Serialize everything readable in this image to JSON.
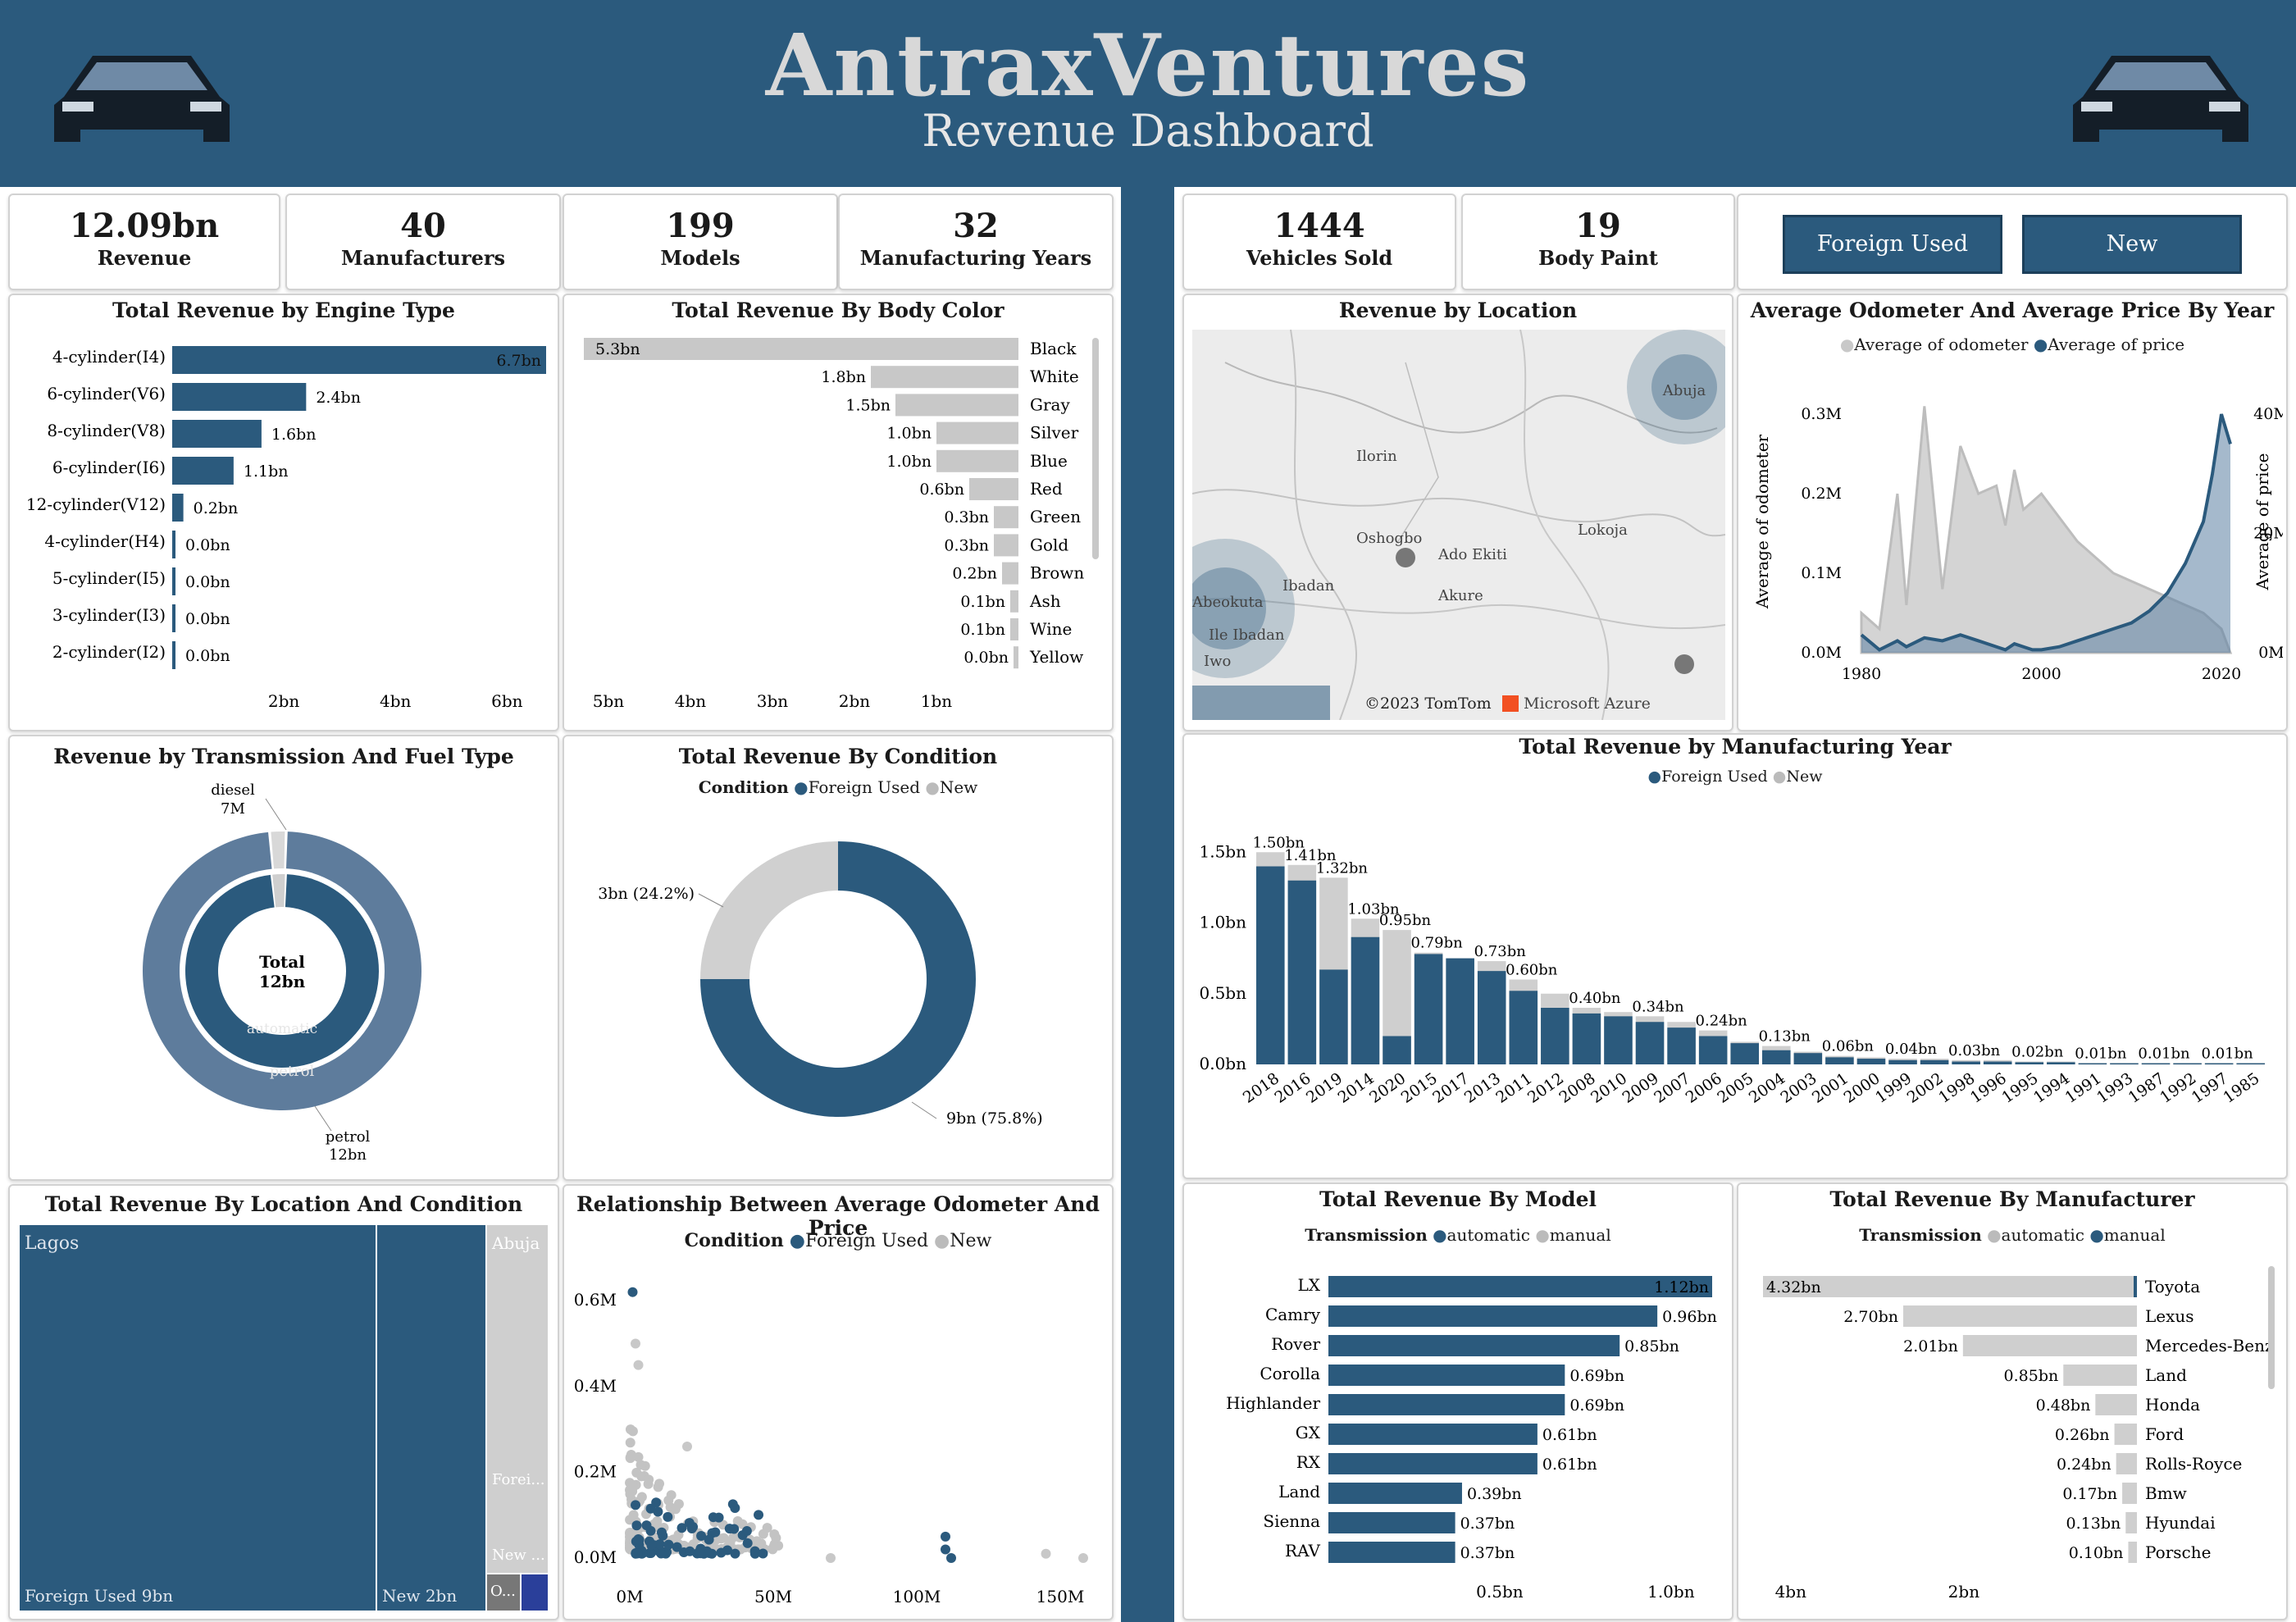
{
  "header": {
    "title": "AntraxVentures",
    "subtitle": "Revenue Dashboard"
  },
  "colors": {
    "primary": "#2b5a7d",
    "secondary": "#c8c8c8",
    "background": "#ffffff"
  },
  "kpis": [
    {
      "value": "12.09bn",
      "label": "Revenue"
    },
    {
      "value": "40",
      "label": "Manufacturers"
    },
    {
      "value": "199",
      "label": "Models"
    },
    {
      "value": "32",
      "label": "Manufacturing Years"
    },
    {
      "value": "1444",
      "label": "Vehicles Sold"
    },
    {
      "value": "19",
      "label": "Body Paint"
    }
  ],
  "slicer": {
    "buttons": [
      "Foreign Used",
      "New"
    ]
  },
  "chart_data": [
    {
      "id": "engine",
      "type": "bar",
      "title": "Total Revenue by Engine Type",
      "categories": [
        "4-cylinder(I4)",
        "6-cylinder(V6)",
        "8-cylinder(V8)",
        "6-cylinder(I6)",
        "12-cylinder(V12)",
        "4-cylinder(H4)",
        "5-cylinder(I5)",
        "3-cylinder(I3)",
        "2-cylinder(I2)"
      ],
      "values": [
        6.7,
        2.4,
        1.6,
        1.1,
        0.2,
        0.0,
        0.0,
        0.0,
        0.0
      ],
      "labels": [
        "6.7bn",
        "2.4bn",
        "1.6bn",
        "1.1bn",
        "0.2bn",
        "0.0bn",
        "0.0bn",
        "0.0bn",
        "0.0bn"
      ],
      "xticks": [
        "2bn",
        "4bn",
        "6bn"
      ],
      "xtick_values": [
        2,
        4,
        6
      ],
      "xlim": [
        0,
        6.7
      ]
    },
    {
      "id": "bodycolor",
      "type": "bar",
      "title": "Total Revenue By Body Color",
      "categories": [
        "Black",
        "White",
        "Gray",
        "Silver",
        "Blue",
        "Red",
        "Green",
        "Gold",
        "Brown",
        "Ash",
        "Wine",
        "Yellow"
      ],
      "values": [
        5.3,
        1.8,
        1.5,
        1.0,
        1.0,
        0.6,
        0.3,
        0.3,
        0.2,
        0.1,
        0.1,
        0.0
      ],
      "labels": [
        "5.3bn",
        "1.8bn",
        "1.5bn",
        "1.0bn",
        "1.0bn",
        "0.6bn",
        "0.3bn",
        "0.3bn",
        "0.2bn",
        "0.1bn",
        "0.1bn",
        "0.0bn"
      ],
      "xticks": [
        "5bn",
        "4bn",
        "3bn",
        "2bn",
        "1bn"
      ],
      "xtick_values": [
        5,
        4,
        3,
        2,
        1
      ],
      "xlim": [
        0,
        5.3
      ]
    },
    {
      "id": "transfuel",
      "type": "pie",
      "title": "Revenue by Transmission And Fuel Type",
      "center_label": [
        "Total",
        "12bn"
      ],
      "outer": [
        {
          "name": "petrol",
          "value": 12,
          "label": "petrol 12bn"
        },
        {
          "name": "diesel",
          "value": 0.007,
          "label": "diesel 7M"
        }
      ],
      "inner": [
        {
          "name": "automatic",
          "value": 11.3
        },
        {
          "name": "manual",
          "value": 0.7
        }
      ]
    },
    {
      "id": "condition",
      "type": "pie",
      "title": "Total Revenue By Condition",
      "legend_title": "Condition",
      "series": [
        {
          "name": "Foreign Used",
          "value": 9,
          "label": "9bn (75.8%)"
        },
        {
          "name": "New",
          "value": 3,
          "label": "3bn (24.2%)"
        }
      ]
    },
    {
      "id": "treemap",
      "type": "table",
      "title": "Total Revenue By Location And Condition",
      "groups": [
        {
          "name": "Lagos",
          "cells": [
            {
              "label": "Foreign Used 9bn",
              "value": 9
            },
            {
              "label": "New 2bn",
              "value": 2
            }
          ]
        },
        {
          "name": "Abuja",
          "cells": [
            {
              "label": "Forei...",
              "value": 0.3
            },
            {
              "label": "New ...",
              "value": 0.1
            }
          ]
        },
        {
          "name": "O...",
          "cells": []
        }
      ]
    },
    {
      "id": "scatter",
      "type": "scatter",
      "title": "Relationship Between Average Odometer And Price",
      "legend_title": "Condition",
      "series": [
        "Foreign Used",
        "New"
      ],
      "xticks": [
        "0M",
        "50M",
        "100M",
        "150M"
      ],
      "yticks": [
        "0.0M",
        "0.2M",
        "0.4M",
        "0.6M"
      ],
      "xlim": [
        0,
        160
      ],
      "ylim": [
        0,
        0.65
      ]
    },
    {
      "id": "location",
      "type": "map",
      "title": "Revenue by Location",
      "places": [
        "Abuja",
        "Ilorin",
        "Oshogbo",
        "Ado Ekiti",
        "Lokoja",
        "Ibadan",
        "Akure",
        "Abeokuta",
        "Ile Ibadan",
        "Iwo"
      ],
      "attribution": [
        "©2023 TomTom",
        "Microsoft Azure"
      ]
    },
    {
      "id": "odoprice",
      "type": "area",
      "title": "Average Odometer And Average Price By Year",
      "legend": [
        "Average of odometer",
        "Average of price"
      ],
      "ylabel": "Average of odometer",
      "y2label": "Average of price",
      "yticks": [
        "0.0M",
        "0.1M",
        "0.2M",
        "0.3M"
      ],
      "y2ticks": [
        "0M",
        "20M",
        "40M"
      ],
      "xticks": [
        "1980",
        "2000",
        "2020"
      ],
      "x": [
        1980,
        1982,
        1984,
        1985,
        1987,
        1989,
        1991,
        1993,
        1995,
        1996,
        1997,
        1998,
        1999,
        2000,
        2002,
        2004,
        2006,
        2008,
        2010,
        2012,
        2014,
        2016,
        2018,
        2019,
        2020,
        2021
      ],
      "odometer": [
        0.05,
        0.03,
        0.2,
        0.06,
        0.31,
        0.08,
        0.26,
        0.2,
        0.21,
        0.16,
        0.23,
        0.18,
        0.19,
        0.2,
        0.17,
        0.14,
        0.12,
        0.1,
        0.09,
        0.08,
        0.07,
        0.06,
        0.05,
        0.04,
        0.03,
        0.0
      ],
      "price": [
        3,
        0.5,
        2,
        1,
        2.5,
        2,
        3,
        2,
        1,
        0.5,
        1.5,
        1,
        0.5,
        0.5,
        1,
        2,
        3,
        4,
        5,
        7,
        10,
        15,
        22,
        30,
        40,
        35
      ]
    },
    {
      "id": "mfgyear",
      "type": "bar",
      "title": "Total Revenue by Manufacturing Year",
      "legend": [
        "Foreign Used",
        "New"
      ],
      "categories": [
        "2018",
        "2016",
        "2019",
        "2014",
        "2020",
        "2015",
        "2017",
        "2013",
        "2011",
        "2012",
        "2008",
        "2010",
        "2009",
        "2007",
        "2006",
        "2005",
        "2004",
        "2003",
        "2001",
        "2000",
        "1999",
        "2002",
        "1998",
        "1996",
        "1995",
        "1994",
        "1991",
        "1993",
        "1987",
        "1992",
        "1997",
        "1985"
      ],
      "totals": [
        1.5,
        1.41,
        1.32,
        1.03,
        0.95,
        0.79,
        0.75,
        0.73,
        0.6,
        0.5,
        0.4,
        0.37,
        0.34,
        0.3,
        0.24,
        0.16,
        0.13,
        0.09,
        0.06,
        0.05,
        0.04,
        0.04,
        0.03,
        0.03,
        0.02,
        0.02,
        0.01,
        0.01,
        0.01,
        0.01,
        0.01,
        0.01
      ],
      "foreign_used": [
        1.4,
        1.3,
        0.67,
        0.9,
        0.2,
        0.78,
        0.75,
        0.66,
        0.52,
        0.4,
        0.36,
        0.34,
        0.3,
        0.26,
        0.2,
        0.15,
        0.1,
        0.08,
        0.05,
        0.04,
        0.03,
        0.03,
        0.02,
        0.02,
        0.015,
        0.015,
        0.008,
        0.008,
        0.008,
        0.008,
        0.008,
        0.008
      ],
      "labels": [
        "1.50bn",
        "1.41bn",
        "1.32bn",
        "1.03bn",
        "0.95bn",
        "0.79bn",
        "",
        "0.73bn",
        "0.60bn",
        "",
        "0.40bn",
        "",
        "0.34bn",
        "",
        "0.24bn",
        "",
        "0.13bn",
        "",
        "0.06bn",
        "",
        "0.04bn",
        "",
        "0.03bn",
        "",
        "0.02bn",
        "",
        "0.01bn",
        "",
        "0.01bn",
        "",
        "0.01bn",
        ""
      ],
      "yticks": [
        "0.0bn",
        "0.5bn",
        "1.0bn",
        "1.5bn"
      ],
      "ylim": [
        0,
        1.6
      ]
    },
    {
      "id": "model",
      "type": "bar",
      "title": "Total Revenue By Model",
      "legend_title": "Transmission",
      "legend": [
        "automatic",
        "manual"
      ],
      "categories": [
        "LX",
        "Camry",
        "Rover",
        "Corolla",
        "Highlander",
        "GX",
        "RX",
        "Land",
        "Sienna",
        "RAV"
      ],
      "values": [
        1.12,
        0.96,
        0.85,
        0.69,
        0.69,
        0.61,
        0.61,
        0.39,
        0.37,
        0.37
      ],
      "labels": [
        "1.12bn",
        "0.96bn",
        "0.85bn",
        "0.69bn",
        "0.69bn",
        "0.61bn",
        "0.61bn",
        "0.39bn",
        "0.37bn",
        "0.37bn"
      ],
      "xticks": [
        "0.5bn",
        "1.0bn"
      ],
      "xtick_values": [
        0.5,
        1.0
      ],
      "xlim": [
        0,
        1.12
      ]
    },
    {
      "id": "manufacturer",
      "type": "bar",
      "title": "Total Revenue By Manufacturer",
      "legend_title": "Transmission",
      "legend": [
        "automatic",
        "manual"
      ],
      "categories": [
        "Toyota",
        "Lexus",
        "Mercedes-Benz",
        "Land",
        "Honda",
        "Ford",
        "Rolls-Royce",
        "Bmw",
        "Hyundai",
        "Porsche"
      ],
      "values": [
        4.32,
        2.7,
        2.01,
        0.85,
        0.48,
        0.26,
        0.24,
        0.17,
        0.13,
        0.1
      ],
      "labels": [
        "4.32bn",
        "2.70bn",
        "2.01bn",
        "0.85bn",
        "0.48bn",
        "0.26bn",
        "0.24bn",
        "0.17bn",
        "0.13bn",
        "0.10bn"
      ],
      "xticks": [
        "4bn",
        "2bn"
      ],
      "xtick_values": [
        4,
        2
      ],
      "xlim": [
        0,
        4.32
      ]
    }
  ]
}
